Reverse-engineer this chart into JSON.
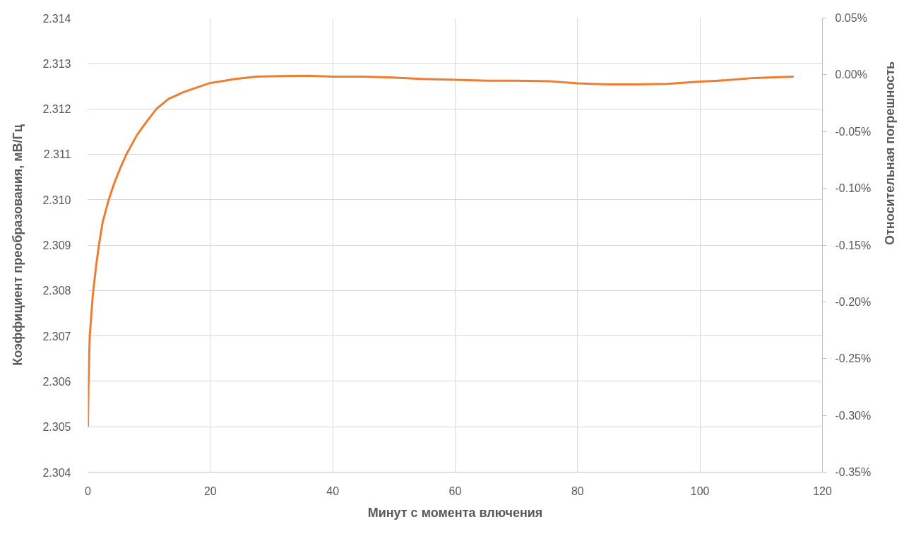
{
  "chart_data": {
    "type": "line",
    "xlabel": "Минут с момента влючения",
    "ylabel": "Коэффициент преобразования, мВ/Гц",
    "y2label": "Относительная погрешность",
    "x": [
      0,
      0.1,
      0.3,
      0.8,
      1.3,
      1.8,
      2.4,
      3.4,
      4.3,
      5.3,
      6.3,
      8.0,
      9.6,
      11.2,
      13.2,
      15.5,
      17.8,
      20.0,
      22.4,
      23.7,
      27.5,
      31.4,
      36.0,
      40.0,
      44.8,
      49.8,
      54.4,
      60.0,
      65.2,
      69.8,
      75.2,
      80.0,
      85.0,
      89.7,
      94.7,
      100.0,
      104.3,
      108.9,
      115.3
    ],
    "series": [
      {
        "color": "#ed7d31",
        "values": [
          2.305,
          2.306,
          2.307,
          2.3079,
          2.3085,
          2.309,
          2.3095,
          2.31,
          2.31036,
          2.3107,
          2.311,
          2.31142,
          2.31172,
          2.312,
          2.31222,
          2.31236,
          2.31247,
          2.31257,
          2.31262,
          2.31265,
          2.31271,
          2.31272,
          2.31273,
          2.31271,
          2.31271,
          2.31269,
          2.31266,
          2.31264,
          2.31262,
          2.31262,
          2.31261,
          2.31256,
          2.31254,
          2.31254,
          2.31255,
          2.3126,
          2.31263,
          2.31268,
          2.31271
        ]
      }
    ],
    "xlim": [
      0,
      120
    ],
    "xticks": [
      0,
      20,
      40,
      60,
      80,
      100,
      120
    ],
    "ylim": [
      2.304,
      2.314
    ],
    "yticks": [
      2.304,
      2.305,
      2.306,
      2.307,
      2.308,
      2.309,
      {
        "value": 2.31,
        "label": "2.310"
      },
      2.311,
      2.312,
      2.313,
      2.314
    ],
    "y2lim": [
      -0.35,
      0.05
    ],
    "y2ticks": [
      {
        "value": -0.35,
        "label": "-0.35%"
      },
      {
        "value": -0.3,
        "label": "-0.30%"
      },
      {
        "value": -0.25,
        "label": "-0.25%"
      },
      {
        "value": -0.2,
        "label": "-0.20%"
      },
      {
        "value": -0.15,
        "label": "-0.15%"
      },
      {
        "value": -0.1,
        "label": "-0.10%"
      },
      {
        "value": -0.05,
        "label": "-0.05%"
      },
      {
        "value": 0,
        "label": "0.00%"
      },
      {
        "value": 0.05,
        "label": "0.05%"
      }
    ],
    "grid": true,
    "line_style": "solid"
  }
}
